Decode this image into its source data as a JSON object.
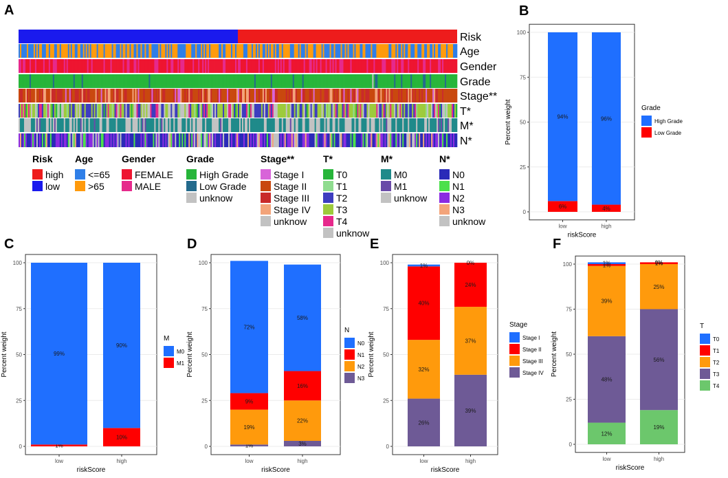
{
  "panel_letters": [
    "A",
    "B",
    "C",
    "D",
    "E",
    "F"
  ],
  "heatmap": {
    "rows": [
      "Risk",
      "Age",
      "Gender",
      "Grade",
      "Stage**",
      "T*",
      "M*",
      "N*"
    ],
    "legends": [
      {
        "title": "Risk",
        "items": [
          {
            "label": "high",
            "color": "#ee1c1c"
          },
          {
            "label": "low",
            "color": "#1a1aee"
          }
        ]
      },
      {
        "title": "Age",
        "items": [
          {
            "label": "<=65",
            "color": "#2f7fe8"
          },
          {
            "label": ">65",
            "color": "#ff9a0c"
          }
        ]
      },
      {
        "title": "Gender",
        "items": [
          {
            "label": "FEMALE",
            "color": "#ee1530"
          },
          {
            "label": "MALE",
            "color": "#e6298c"
          }
        ]
      },
      {
        "title": "Grade",
        "items": [
          {
            "label": "High Grade",
            "color": "#27b53a"
          },
          {
            "label": "Low Grade",
            "color": "#236a8c"
          },
          {
            "label": "unknow",
            "color": "#c2c2c2"
          }
        ]
      },
      {
        "title": "Stage**",
        "items": [
          {
            "label": "Stage I",
            "color": "#d864d9"
          },
          {
            "label": "Stage II",
            "color": "#c9480e"
          },
          {
            "label": "Stage III",
            "color": "#c92a2a"
          },
          {
            "label": "Stage IV",
            "color": "#f3a47a"
          },
          {
            "label": "unknow",
            "color": "#c2c2c2"
          }
        ]
      },
      {
        "title": "T*",
        "items": [
          {
            "label": "T0",
            "color": "#27b53a"
          },
          {
            "label": "T1",
            "color": "#8fdc8f"
          },
          {
            "label": "T2",
            "color": "#3d3dbf"
          },
          {
            "label": "T3",
            "color": "#9dcb3c"
          },
          {
            "label": "T4",
            "color": "#e6298c"
          },
          {
            "label": "unknow",
            "color": "#c2c2c2"
          }
        ]
      },
      {
        "title": "M*",
        "items": [
          {
            "label": "M0",
            "color": "#1f8a8a"
          },
          {
            "label": "M1",
            "color": "#6a4aa8"
          },
          {
            "label": "unknow",
            "color": "#c2c2c2"
          }
        ]
      },
      {
        "title": "N*",
        "items": [
          {
            "label": "N0",
            "color": "#2a2ab8"
          },
          {
            "label": "N1",
            "color": "#4ce04c"
          },
          {
            "label": "N2",
            "color": "#8a2be2"
          },
          {
            "label": "N3",
            "color": "#f3a47a"
          },
          {
            "label": "unknow",
            "color": "#c2c2c2"
          }
        ]
      }
    ]
  },
  "chart_data": [
    {
      "panel": "B",
      "type": "bar",
      "stacked": true,
      "categories": [
        "low",
        "high"
      ],
      "xlabel": "riskScore",
      "ylabel": "Percent weight",
      "ylim": [
        0,
        100
      ],
      "yticks": [
        0,
        25,
        50,
        75,
        100
      ],
      "legend_title": "Grade",
      "series": [
        {
          "name": "High Grade",
          "color": "#1f6fff",
          "values": [
            94,
            96
          ]
        },
        {
          "name": "Low Grade",
          "color": "#ff0000",
          "values": [
            6,
            4
          ]
        }
      ],
      "labels": [
        [
          "94%",
          "96%"
        ],
        [
          "6%",
          "4%"
        ]
      ]
    },
    {
      "panel": "C",
      "type": "bar",
      "stacked": true,
      "categories": [
        "low",
        "high"
      ],
      "xlabel": "riskScore",
      "ylabel": "Percent weight",
      "ylim": [
        0,
        100
      ],
      "yticks": [
        0,
        25,
        50,
        75,
        100
      ],
      "legend_title": "M",
      "series": [
        {
          "name": "M0",
          "color": "#1f6fff",
          "values": [
            99,
            90
          ]
        },
        {
          "name": "M1",
          "color": "#ff0000",
          "values": [
            1,
            10
          ]
        }
      ],
      "labels": [
        [
          "99%",
          "90%"
        ],
        [
          "1%",
          "10%"
        ]
      ]
    },
    {
      "panel": "D",
      "type": "bar",
      "stacked": true,
      "categories": [
        "low",
        "high"
      ],
      "xlabel": "riskScore",
      "ylabel": "Percent weight",
      "ylim": [
        0,
        100
      ],
      "yticks": [
        0,
        25,
        50,
        75,
        100
      ],
      "legend_title": "N",
      "series": [
        {
          "name": "N0",
          "color": "#1f6fff",
          "values": [
            72,
            58
          ]
        },
        {
          "name": "N1",
          "color": "#ff0000",
          "values": [
            9,
            16
          ]
        },
        {
          "name": "N2",
          "color": "#ff9a0c",
          "values": [
            19,
            22
          ]
        },
        {
          "name": "N3",
          "color": "#6e5a96",
          "values": [
            1,
            3
          ]
        }
      ],
      "labels": [
        [
          "72%",
          "58%"
        ],
        [
          "9%",
          "16%"
        ],
        [
          "19%",
          "22%"
        ],
        [
          "1%",
          "3%"
        ]
      ]
    },
    {
      "panel": "E",
      "type": "bar",
      "stacked": true,
      "categories": [
        "low",
        "high"
      ],
      "xlabel": "riskScore",
      "ylabel": "Percent weight",
      "ylim": [
        0,
        100
      ],
      "yticks": [
        0,
        25,
        50,
        75,
        100
      ],
      "legend_title": "Stage",
      "series": [
        {
          "name": "Stage I",
          "color": "#1f6fff",
          "values": [
            1,
            0
          ]
        },
        {
          "name": "Stage II",
          "color": "#ff0000",
          "values": [
            40,
            24
          ]
        },
        {
          "name": "Stage III",
          "color": "#ff9a0c",
          "values": [
            32,
            37
          ]
        },
        {
          "name": "Stage IV",
          "color": "#6e5a96",
          "values": [
            26,
            39
          ]
        }
      ],
      "labels": [
        [
          "1%",
          "0%"
        ],
        [
          "40%",
          "24%"
        ],
        [
          "32%",
          "37%"
        ],
        [
          "26%",
          "39%"
        ]
      ]
    },
    {
      "panel": "F",
      "type": "bar",
      "stacked": true,
      "categories": [
        "low",
        "high"
      ],
      "xlabel": "riskScore",
      "ylabel": "Percent weight",
      "ylim": [
        0,
        100
      ],
      "yticks": [
        0,
        25,
        50,
        75,
        100
      ],
      "legend_title": "T",
      "series": [
        {
          "name": "T0",
          "color": "#1f6fff",
          "values": [
            1,
            0
          ]
        },
        {
          "name": "T1",
          "color": "#ff0000",
          "values": [
            1,
            1
          ]
        },
        {
          "name": "T2",
          "color": "#ff9a0c",
          "values": [
            39,
            25
          ]
        },
        {
          "name": "T3",
          "color": "#6e5a96",
          "values": [
            48,
            56
          ]
        },
        {
          "name": "T4",
          "color": "#6cc76c",
          "values": [
            12,
            19
          ]
        }
      ],
      "labels": [
        [
          "1%",
          "0%"
        ],
        [
          "1%",
          "1%"
        ],
        [
          "39%",
          "25%"
        ],
        [
          "48%",
          "56%"
        ],
        [
          "12%",
          "19%"
        ]
      ]
    }
  ]
}
